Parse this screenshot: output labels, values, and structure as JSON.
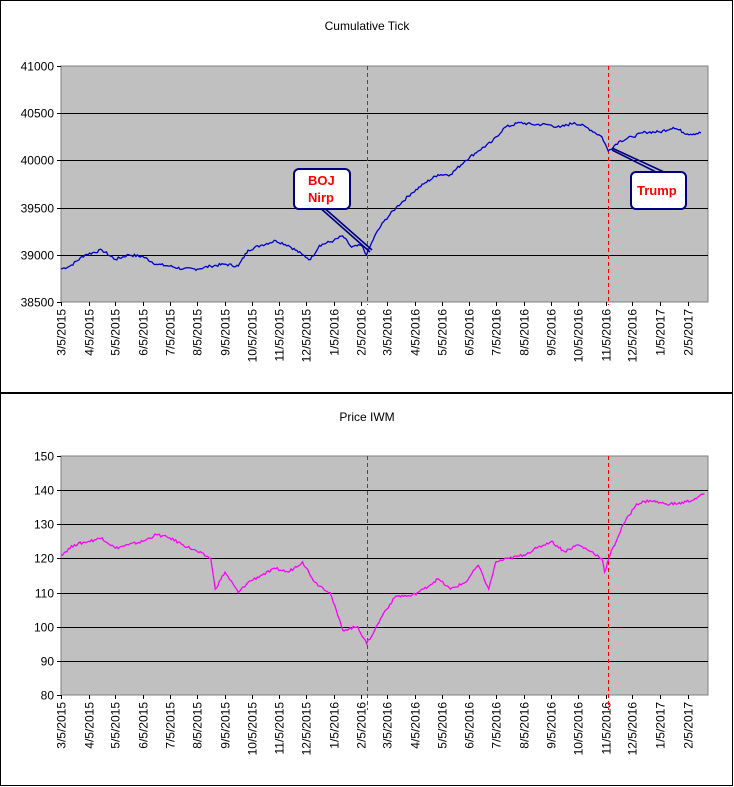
{
  "chart_data": [
    {
      "type": "line",
      "title": "Cumulative Tick",
      "ylim": [
        38500,
        41000
      ],
      "yticks": [
        38500,
        39000,
        39500,
        40000,
        40500,
        41000
      ],
      "grid": true,
      "x_tick_labels": [
        "3/5/2015",
        "4/5/2015",
        "5/5/2015",
        "6/5/2015",
        "7/5/2015",
        "8/5/2015",
        "9/5/2015",
        "10/5/2015",
        "11/5/2015",
        "12/5/2015",
        "1/5/2016",
        "2/5/2016",
        "3/5/2016",
        "4/5/2016",
        "5/5/2016",
        "6/5/2016",
        "7/5/2016",
        "8/5/2016",
        "9/5/2016",
        "10/5/2016",
        "11/5/2016",
        "12/5/2016",
        "1/5/2017",
        "2/5/2017"
      ],
      "series": [
        {
          "color": "#0000cc",
          "x": [
            "3/5/2015",
            "3/15/2015",
            "4/1/2015",
            "4/20/2015",
            "5/5/2015",
            "5/20/2015",
            "6/5/2015",
            "6/20/2015",
            "7/5/2015",
            "7/20/2015",
            "8/5/2015",
            "8/20/2015",
            "9/5/2015",
            "9/20/2015",
            "10/1/2015",
            "10/15/2015",
            "11/1/2015",
            "11/15/2015",
            "12/1/2015",
            "12/10/2015",
            "12/20/2015",
            "1/5/2016",
            "1/15/2016",
            "1/25/2016",
            "2/5/2016",
            "2/11/2016",
            "2/20/2016",
            "3/1/2016",
            "3/15/2016",
            "4/1/2016",
            "4/15/2016",
            "5/1/2016",
            "5/15/2016",
            "6/1/2016",
            "6/15/2016",
            "7/1/2016",
            "7/15/2016",
            "8/1/2016",
            "8/15/2016",
            "9/1/2016",
            "9/15/2016",
            "10/1/2016",
            "10/15/2016",
            "11/1/2016",
            "11/8/2016",
            "11/20/2016",
            "12/5/2016",
            "12/20/2016",
            "1/5/2017",
            "1/20/2017",
            "2/5/2017",
            "2/20/2017"
          ],
          "values": [
            38850,
            38880,
            39000,
            39050,
            38950,
            39000,
            38980,
            38900,
            38880,
            38850,
            38850,
            38880,
            38900,
            38880,
            39050,
            39100,
            39150,
            39100,
            39000,
            38950,
            39100,
            39150,
            39200,
            39080,
            39100,
            39000,
            39200,
            39350,
            39500,
            39650,
            39750,
            39850,
            39850,
            40000,
            40100,
            40200,
            40350,
            40400,
            40380,
            40380,
            40350,
            40400,
            40350,
            40250,
            40100,
            40200,
            40250,
            40300,
            40300,
            40350,
            40280,
            40290
          ]
        }
      ],
      "annotations": [
        "BOJ",
        "Nirp",
        "Trump"
      ]
    },
    {
      "type": "line",
      "title": "Price IWM",
      "ylim": [
        80,
        150
      ],
      "yticks": [
        80,
        90,
        100,
        110,
        120,
        130,
        140,
        150
      ],
      "grid": true,
      "x_tick_labels": [
        "3/5/2015",
        "4/5/2015",
        "5/5/2015",
        "6/5/2015",
        "7/5/2015",
        "8/5/2015",
        "9/5/2015",
        "10/5/2015",
        "11/5/2015",
        "12/5/2015",
        "1/5/2016",
        "2/5/2016",
        "3/5/2016",
        "4/5/2016",
        "5/5/2016",
        "6/5/2016",
        "7/5/2016",
        "8/5/2016",
        "9/5/2016",
        "10/5/2016",
        "11/5/2016",
        "12/5/2016",
        "1/5/2017",
        "2/5/2017"
      ],
      "series": [
        {
          "color": "#ff00ff",
          "x": [
            "3/5/2015",
            "3/20/2015",
            "4/5/2015",
            "4/20/2015",
            "5/5/2015",
            "5/20/2015",
            "6/5/2015",
            "6/20/2015",
            "7/5/2015",
            "7/20/2015",
            "8/5/2015",
            "8/20/2015",
            "8/25/2015",
            "9/5/2015",
            "9/20/2015",
            "10/1/2015",
            "10/15/2015",
            "11/1/2015",
            "11/15/2015",
            "12/1/2015",
            "12/15/2015",
            "1/1/2016",
            "1/15/2016",
            "2/1/2016",
            "2/11/2016",
            "2/20/2016",
            "3/1/2016",
            "3/15/2016",
            "4/1/2016",
            "4/15/2016",
            "5/1/2016",
            "5/15/2016",
            "6/1/2016",
            "6/15/2016",
            "6/27/2016",
            "7/5/2016",
            "7/20/2016",
            "8/5/2016",
            "8/20/2016",
            "9/5/2016",
            "9/20/2016",
            "10/5/2016",
            "10/20/2016",
            "11/1/2016",
            "11/4/2016",
            "11/10/2016",
            "11/25/2016",
            "12/10/2016",
            "12/25/2016",
            "1/10/2017",
            "1/25/2017",
            "2/10/2017",
            "2/24/2017"
          ],
          "values": [
            121,
            124,
            125,
            126,
            123,
            124,
            125,
            127,
            126,
            124,
            122,
            120,
            111,
            116,
            110,
            113,
            115,
            117,
            116,
            119,
            113,
            110,
            99,
            100,
            95,
            99,
            104,
            109,
            109,
            111,
            114,
            111,
            113,
            118,
            111,
            119,
            120,
            121,
            123,
            125,
            122,
            124,
            122,
            120,
            116,
            121,
            130,
            136,
            137,
            136,
            136,
            137,
            139
          ]
        }
      ]
    }
  ]
}
